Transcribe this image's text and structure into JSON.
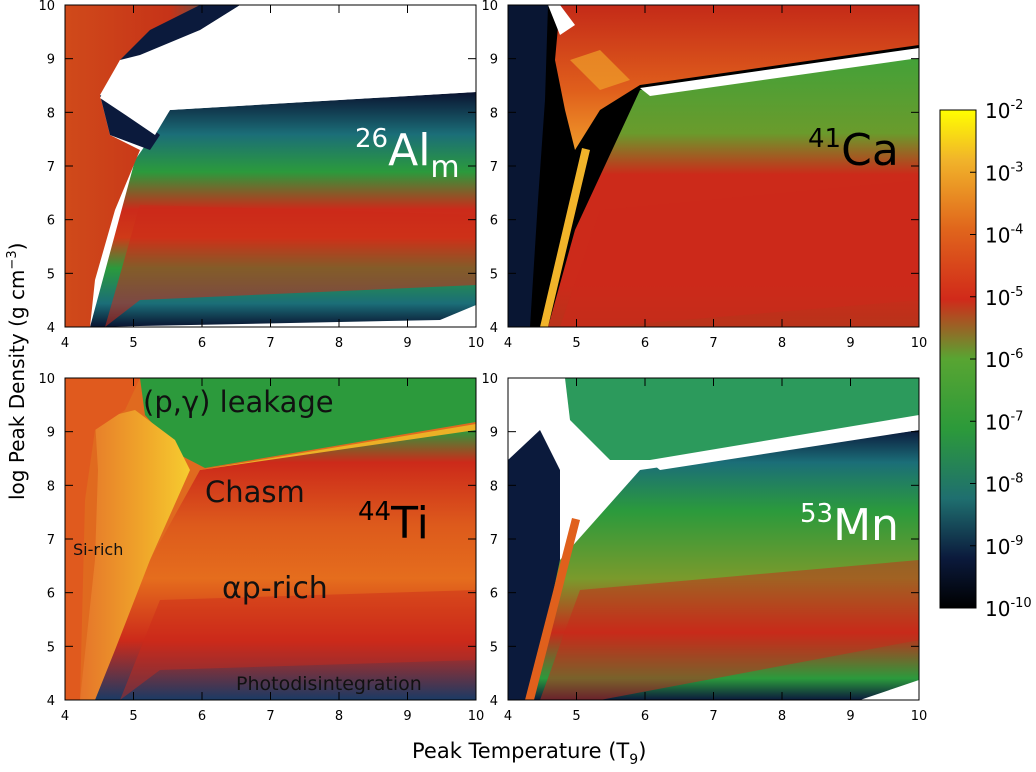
{
  "chart_data": [
    {
      "type": "heatmap",
      "panel": "top-left",
      "isotope": {
        "mass": "26",
        "symbol": "Al",
        "subscript": "m"
      },
      "xlim": [
        4,
        10
      ],
      "ylim": [
        4,
        10
      ],
      "xticks": [
        "4",
        "5",
        "6",
        "7",
        "8",
        "9",
        "10"
      ],
      "yticks": [
        "4",
        "5",
        "6",
        "7",
        "8",
        "9",
        "10"
      ]
    },
    {
      "type": "heatmap",
      "panel": "top-right",
      "isotope": {
        "mass": "41",
        "symbol": "Ca",
        "subscript": ""
      },
      "xlim": [
        4,
        10
      ],
      "ylim": [
        4,
        10
      ],
      "xticks": [
        "4",
        "5",
        "6",
        "7",
        "8",
        "9",
        "10"
      ],
      "yticks": [
        "4",
        "5",
        "6",
        "7",
        "8",
        "9",
        "10"
      ]
    },
    {
      "type": "heatmap",
      "panel": "bottom-left",
      "isotope": {
        "mass": "44",
        "symbol": "Ti",
        "subscript": ""
      },
      "region_labels": [
        "(p,γ) leakage",
        "Chasm",
        "Si-rich",
        "αp-rich",
        "Photodisintegration"
      ],
      "xlim": [
        4,
        10
      ],
      "ylim": [
        4,
        10
      ],
      "xticks": [
        "4",
        "5",
        "6",
        "7",
        "8",
        "9",
        "10"
      ],
      "yticks": [
        "4",
        "5",
        "6",
        "7",
        "8",
        "9",
        "10"
      ]
    },
    {
      "type": "heatmap",
      "panel": "bottom-right",
      "isotope": {
        "mass": "53",
        "symbol": "Mn",
        "subscript": ""
      },
      "xlim": [
        4,
        10
      ],
      "ylim": [
        4,
        10
      ],
      "xticks": [
        "4",
        "5",
        "6",
        "7",
        "8",
        "9",
        "10"
      ],
      "yticks": [
        "4",
        "5",
        "6",
        "7",
        "8",
        "9",
        "10"
      ]
    }
  ],
  "axes": {
    "xlabel": {
      "main": "Peak Temperature (T",
      "sub": "9",
      "close": ")"
    },
    "ylabel": {
      "main": "log Peak Density (g cm",
      "sup": "−3",
      "close": ")"
    }
  },
  "colorbar": {
    "scale": "log",
    "range": [
      1e-10,
      0.01
    ],
    "labels": [
      {
        "base": "10",
        "exp": "-2"
      },
      {
        "base": "10",
        "exp": "-3"
      },
      {
        "base": "10",
        "exp": "-4"
      },
      {
        "base": "10",
        "exp": "-5"
      },
      {
        "base": "10",
        "exp": "-6"
      },
      {
        "base": "10",
        "exp": "-7"
      },
      {
        "base": "10",
        "exp": "-8"
      },
      {
        "base": "10",
        "exp": "-9"
      },
      {
        "base": "10",
        "exp": "-10"
      }
    ],
    "stops": [
      {
        "v": 0.0,
        "color": "#000000"
      },
      {
        "v": 0.1,
        "color": "#0b1a3c"
      },
      {
        "v": 0.22,
        "color": "#1f6f6f"
      },
      {
        "v": 0.36,
        "color": "#2c9a3a"
      },
      {
        "v": 0.5,
        "color": "#58a532"
      },
      {
        "v": 0.62,
        "color": "#d12a1a"
      },
      {
        "v": 0.76,
        "color": "#e0651c"
      },
      {
        "v": 0.9,
        "color": "#f1b42a"
      },
      {
        "v": 1.0,
        "color": "#ffff00"
      }
    ]
  }
}
